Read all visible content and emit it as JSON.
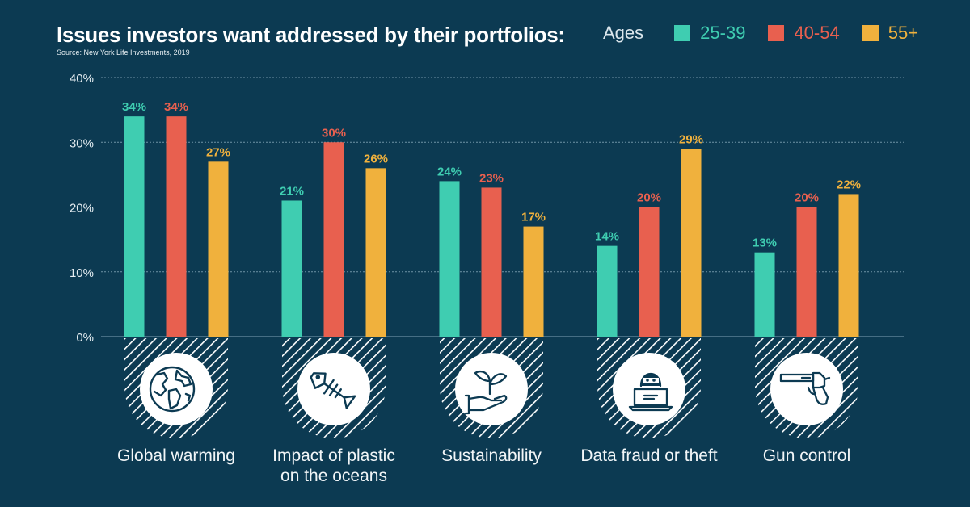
{
  "title": "Issues investors want addressed by their portfolios:",
  "source": "Source: New York Life Investments, 2019",
  "legend": {
    "title": "Ages",
    "items": [
      {
        "label": "25-39",
        "color": "#3fcdb1"
      },
      {
        "label": "40-54",
        "color": "#e8604f"
      },
      {
        "label": "55+",
        "color": "#f0b13d"
      }
    ]
  },
  "chart_data": {
    "type": "bar",
    "categories": [
      "Global warming",
      "Impact of plastic on the oceans",
      "Sustainability",
      "Data fraud or theft",
      "Gun control"
    ],
    "category_lines": [
      [
        "Global warming"
      ],
      [
        "Impact of plastic",
        "on the oceans"
      ],
      [
        "Sustainability"
      ],
      [
        "Data fraud or theft"
      ],
      [
        "Gun control"
      ]
    ],
    "category_icons": [
      "globe-icon",
      "fish-skeleton-icon",
      "plant-in-hand-icon",
      "hacker-laptop-icon",
      "gun-icon"
    ],
    "series": [
      {
        "name": "25-39",
        "color": "#3fcdb1",
        "values": [
          34,
          21,
          24,
          14,
          13
        ]
      },
      {
        "name": "40-54",
        "color": "#e8604f",
        "values": [
          34,
          30,
          23,
          20,
          20
        ]
      },
      {
        "name": "55+",
        "color": "#f0b13d",
        "values": [
          27,
          26,
          17,
          29,
          22
        ]
      }
    ],
    "yticks": [
      "0%",
      "10%",
      "20%",
      "30%",
      "40%"
    ],
    "ylim": [
      0,
      40
    ],
    "value_suffix": "%",
    "grid": true,
    "legend_position": "top-right"
  }
}
